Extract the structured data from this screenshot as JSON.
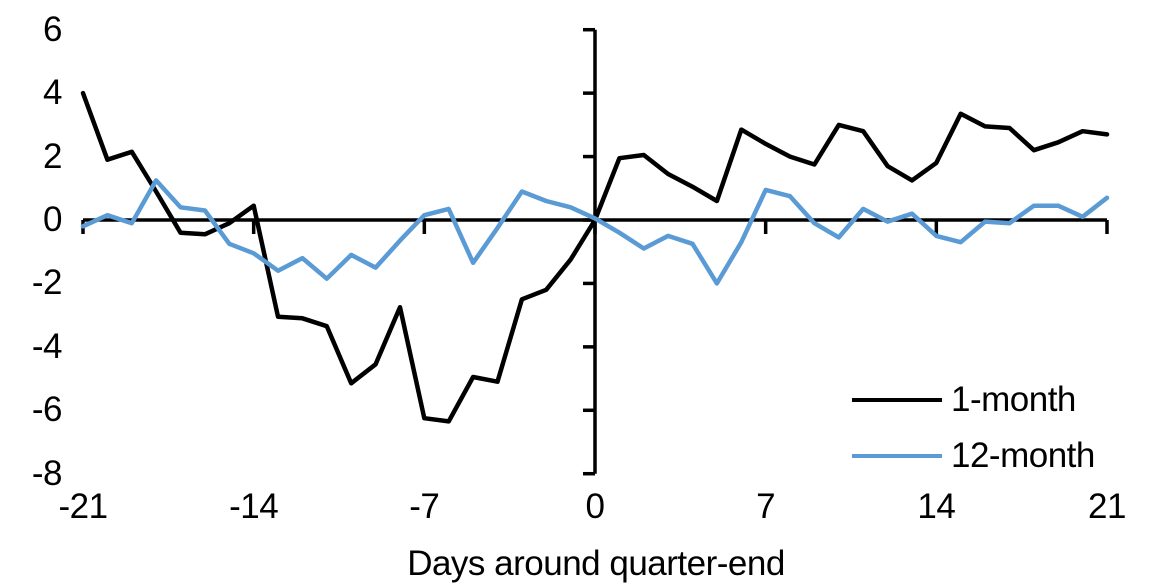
{
  "chart_data": {
    "type": "line",
    "title": "",
    "xlabel": "Days around quarter-end",
    "ylabel": "",
    "xlim": [
      -21,
      21
    ],
    "ylim": [
      -8,
      6
    ],
    "x_ticks": [
      -21,
      -14,
      -7,
      0,
      7,
      14,
      21
    ],
    "y_ticks": [
      6,
      4,
      2,
      0,
      -2,
      -4,
      -6,
      -8
    ],
    "grid": false,
    "legend_position": "bottom-right",
    "axis_color": "#000000",
    "x": [
      -21,
      -20,
      -19,
      -18,
      -17,
      -16,
      -15,
      -14,
      -13,
      -12,
      -11,
      -10,
      -9,
      -8,
      -7,
      -6,
      -5,
      -4,
      -3,
      -2,
      -1,
      0,
      1,
      2,
      3,
      4,
      5,
      6,
      7,
      8,
      9,
      10,
      11,
      12,
      13,
      14,
      15,
      16,
      17,
      18,
      19,
      20,
      21
    ],
    "series": [
      {
        "name": "1-month",
        "color": "#000000",
        "values": [
          4.0,
          1.9,
          2.15,
          0.9,
          -0.4,
          -0.45,
          -0.1,
          0.45,
          -3.05,
          -3.1,
          -3.35,
          -5.15,
          -4.55,
          -2.75,
          -6.25,
          -6.35,
          -4.95,
          -5.1,
          -2.5,
          -2.2,
          -1.25,
          0.0,
          1.95,
          2.05,
          1.45,
          1.05,
          0.6,
          2.85,
          2.4,
          2.0,
          1.75,
          3.0,
          2.8,
          1.7,
          1.25,
          1.8,
          3.35,
          2.95,
          2.9,
          2.2,
          2.45,
          2.8,
          2.7
        ]
      },
      {
        "name": "12-month",
        "color": "#5B9BD5",
        "values": [
          -0.2,
          0.15,
          -0.1,
          1.25,
          0.4,
          0.3,
          -0.75,
          -1.05,
          -1.6,
          -1.2,
          -1.85,
          -1.1,
          -1.5,
          -0.65,
          0.15,
          0.35,
          -1.35,
          -0.25,
          0.9,
          0.6,
          0.4,
          0.05,
          -0.4,
          -0.9,
          -0.5,
          -0.75,
          -2.0,
          -0.7,
          0.95,
          0.75,
          -0.1,
          -0.55,
          0.35,
          -0.05,
          0.2,
          -0.5,
          -0.7,
          -0.05,
          -0.1,
          0.45,
          0.45,
          0.1,
          0.7
        ]
      }
    ]
  }
}
